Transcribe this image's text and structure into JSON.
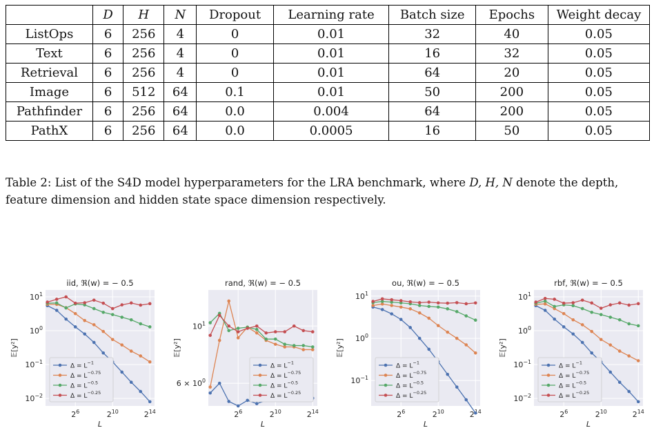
{
  "table": {
    "headers": [
      "",
      "D",
      "H",
      "N",
      "Dropout",
      "Learning rate",
      "Batch size",
      "Epochs",
      "Weight decay"
    ],
    "rows": [
      [
        "ListOps",
        "6",
        "256",
        "4",
        "0",
        "0.01",
        "32",
        "40",
        "0.05"
      ],
      [
        "Text",
        "6",
        "256",
        "4",
        "0",
        "0.01",
        "16",
        "32",
        "0.05"
      ],
      [
        "Retrieval",
        "6",
        "256",
        "4",
        "0",
        "0.01",
        "64",
        "20",
        "0.05"
      ],
      [
        "Image",
        "6",
        "512",
        "64",
        "0.1",
        "0.01",
        "50",
        "200",
        "0.05"
      ],
      [
        "Pathfinder",
        "6",
        "256",
        "64",
        "0.0",
        "0.004",
        "64",
        "200",
        "0.05"
      ],
      [
        "PathX",
        "6",
        "256",
        "64",
        "0.0",
        "0.0005",
        "16",
        "50",
        "0.05"
      ]
    ]
  },
  "caption": {
    "prefix": "Table 2: List of the S4D model hyperparameters for the LRA benchmark, where",
    "vars": "D, H, N",
    "suffix": "denote the depth,",
    "line2": "feature dimension and hidden state space dimension respectively."
  },
  "colors": {
    "plot_bg": "#eaeaf2",
    "grid": "#ffffff",
    "series": [
      "#4c72b0",
      "#dd8452",
      "#55a868",
      "#c44e52"
    ]
  },
  "chart_data": [
    {
      "type": "line",
      "title": "iid, ℜ(w) = − 0.5",
      "xlabel": "L",
      "ylabel": "𝔼[y²]",
      "xscale": "log2",
      "yscale": "log10",
      "xlim": [
        2.8,
        14.5
      ],
      "ylim": [
        0.006,
        16
      ],
      "yticks": [
        {
          "v": 0.01,
          "b": "10",
          "e": "−2"
        },
        {
          "v": 0.1,
          "b": "10",
          "e": "−1"
        },
        {
          "v": 1,
          "b": "10",
          "e": "0"
        },
        {
          "v": 10,
          "b": "10",
          "e": "1"
        }
      ],
      "xticks": [
        {
          "v": 6,
          "b": "2",
          "e": "6"
        },
        {
          "v": 10,
          "b": "2",
          "e": "10"
        },
        {
          "v": 14,
          "b": "2",
          "e": "14"
        }
      ],
      "legend": "lower left",
      "x": [
        3,
        4,
        5,
        6,
        7,
        8,
        9,
        10,
        11,
        12,
        13,
        14
      ],
      "series": [
        {
          "name": "Δ = L",
          "exp": "−1",
          "values": [
            5.5,
            4.0,
            2.2,
            1.3,
            0.8,
            0.45,
            0.22,
            0.12,
            0.06,
            0.03,
            0.016,
            0.008
          ]
        },
        {
          "name": "Δ = L",
          "exp": "−0.75",
          "values": [
            6.0,
            6.0,
            4.8,
            3.2,
            2.0,
            1.5,
            0.95,
            0.55,
            0.38,
            0.25,
            0.18,
            0.12
          ]
        },
        {
          "name": "Δ = L",
          "exp": "−0.5",
          "values": [
            6.5,
            6.6,
            4.7,
            6.2,
            5.8,
            4.5,
            3.5,
            3.0,
            2.5,
            2.1,
            1.6,
            1.3
          ]
        },
        {
          "name": "Δ = L",
          "exp": "−0.25",
          "values": [
            7.0,
            8.5,
            10.0,
            6.5,
            6.7,
            8.0,
            6.5,
            4.5,
            5.8,
            6.6,
            5.7,
            6.3
          ]
        }
      ]
    },
    {
      "type": "line",
      "title": "rand, ℜ(w) = − 0.5",
      "xlabel": "L",
      "ylabel": "𝔼[y²]",
      "xscale": "log2",
      "yscale": "log10",
      "xlim": [
        2.8,
        14.5
      ],
      "ylim": [
        4.9,
        13.8
      ],
      "yticks": [
        {
          "v": 6,
          "b": "6 × 10",
          "e": "0"
        },
        {
          "v": 10,
          "b": "10",
          "e": "1"
        }
      ],
      "xticks": [
        {
          "v": 6,
          "b": "2",
          "e": "6"
        },
        {
          "v": 10,
          "b": "2",
          "e": "10"
        },
        {
          "v": 14,
          "b": "2",
          "e": "14"
        }
      ],
      "legend": "lower right",
      "x": [
        3,
        4,
        5,
        6,
        7,
        8,
        9,
        10,
        11,
        12,
        13,
        14
      ],
      "series": [
        {
          "name": "Δ = L",
          "exp": "−1",
          "values": [
            5.5,
            6.0,
            5.1,
            4.9,
            5.15,
            5.0,
            5.15,
            5.25,
            5.3,
            5.3,
            5.25,
            5.25
          ]
        },
        {
          "name": "Δ = L",
          "exp": "−0.75",
          "values": [
            5.8,
            8.8,
            12.5,
            9.0,
            9.9,
            9.4,
            8.8,
            8.5,
            8.3,
            8.3,
            8.1,
            8.1
          ]
        },
        {
          "name": "Δ = L",
          "exp": "−0.5",
          "values": [
            10.3,
            11.2,
            9.6,
            9.8,
            9.9,
            9.7,
            8.9,
            8.9,
            8.5,
            8.4,
            8.4,
            8.3
          ]
        },
        {
          "name": "Δ = L",
          "exp": "−0.25",
          "values": [
            9.2,
            11.0,
            10.0,
            9.5,
            9.8,
            10.0,
            9.4,
            9.5,
            9.5,
            10.0,
            9.6,
            9.5
          ]
        }
      ]
    },
    {
      "type": "line",
      "title": "ou, ℜ(w) = − 0.5",
      "xlabel": "L",
      "ylabel": "𝔼[y²]",
      "xscale": "log2",
      "yscale": "log10",
      "xlim": [
        2.8,
        14.5
      ],
      "ylim": [
        0.025,
        14
      ],
      "yticks": [
        {
          "v": 0.1,
          "b": "10",
          "e": "−1"
        },
        {
          "v": 1,
          "b": "10",
          "e": "0"
        },
        {
          "v": 10,
          "b": "10",
          "e": "1"
        }
      ],
      "xticks": [
        {
          "v": 6,
          "b": "2",
          "e": "6"
        },
        {
          "v": 10,
          "b": "2",
          "e": "10"
        },
        {
          "v": 14,
          "b": "2",
          "e": "14"
        }
      ],
      "legend": "lower left",
      "x": [
        3,
        4,
        5,
        6,
        7,
        8,
        9,
        10,
        11,
        12,
        13,
        14
      ],
      "series": [
        {
          "name": "Δ = L",
          "exp": "−1",
          "values": [
            5.5,
            4.8,
            3.8,
            2.8,
            1.8,
            1.0,
            0.55,
            0.28,
            0.14,
            0.07,
            0.035,
            0.017
          ]
        },
        {
          "name": "Δ = L",
          "exp": "−0.75",
          "values": [
            6.0,
            6.5,
            6.0,
            5.5,
            5.0,
            4.0,
            3.0,
            2.0,
            1.4,
            1.0,
            0.7,
            0.45
          ]
        },
        {
          "name": "Δ = L",
          "exp": "−0.5",
          "values": [
            7.0,
            7.5,
            7.2,
            6.9,
            6.6,
            6.0,
            5.7,
            5.5,
            5.0,
            4.3,
            3.4,
            2.7
          ]
        },
        {
          "name": "Δ = L",
          "exp": "−0.25",
          "values": [
            7.5,
            8.6,
            8.2,
            7.8,
            7.3,
            7.0,
            7.2,
            6.9,
            6.8,
            7.0,
            6.6,
            6.9
          ]
        }
      ]
    },
    {
      "type": "line",
      "title": "rbf, ℜ(w) = − 0.5",
      "xlabel": "L",
      "ylabel": "𝔼[y²]",
      "xscale": "log2",
      "yscale": "log10",
      "xlim": [
        2.8,
        14.5
      ],
      "ylim": [
        0.006,
        16
      ],
      "yticks": [
        {
          "v": 0.01,
          "b": "10",
          "e": "−2"
        },
        {
          "v": 0.1,
          "b": "10",
          "e": "−1"
        },
        {
          "v": 1,
          "b": "10",
          "e": "0"
        },
        {
          "v": 10,
          "b": "10",
          "e": "1"
        }
      ],
      "xticks": [
        {
          "v": 6,
          "b": "2",
          "e": "6"
        },
        {
          "v": 10,
          "b": "2",
          "e": "10"
        },
        {
          "v": 14,
          "b": "2",
          "e": "14"
        }
      ],
      "legend": "lower left",
      "x": [
        3,
        4,
        5,
        6,
        7,
        8,
        9,
        10,
        11,
        12,
        13,
        14
      ],
      "series": [
        {
          "name": "Δ = L",
          "exp": "−1",
          "values": [
            5.5,
            4.0,
            2.2,
            1.3,
            0.8,
            0.45,
            0.22,
            0.12,
            0.06,
            0.03,
            0.016,
            0.008
          ]
        },
        {
          "name": "Δ = L",
          "exp": "−0.75",
          "values": [
            6.0,
            6.2,
            4.5,
            3.2,
            2.1,
            1.5,
            0.95,
            0.55,
            0.38,
            0.25,
            0.18,
            0.13
          ]
        },
        {
          "name": "Δ = L",
          "exp": "−0.5",
          "values": [
            6.5,
            7.5,
            5.2,
            5.8,
            5.5,
            4.5,
            3.5,
            3.0,
            2.5,
            2.1,
            1.6,
            1.4
          ]
        },
        {
          "name": "Δ = L",
          "exp": "−0.25",
          "values": [
            7.0,
            9.0,
            8.5,
            6.5,
            6.7,
            8.0,
            6.6,
            4.6,
            5.8,
            6.6,
            5.7,
            6.3
          ]
        }
      ]
    }
  ]
}
